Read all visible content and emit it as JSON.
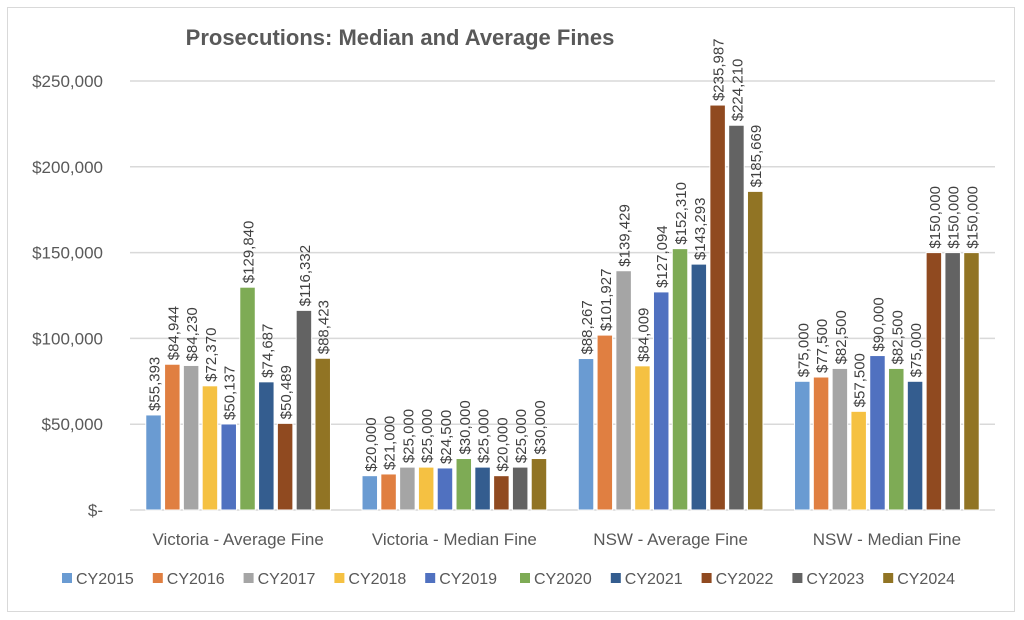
{
  "chart_data": {
    "type": "bar",
    "title": "Prosecutions: Median and Average Fines",
    "xlabel": "",
    "ylabel": "",
    "ylim": [
      0,
      250000
    ],
    "yticks": [
      0,
      50000,
      100000,
      150000,
      200000,
      250000
    ],
    "ytick_labels": [
      "$-",
      "$50,000",
      "$100,000",
      "$150,000",
      "$200,000",
      "$250,000"
    ],
    "grid": true,
    "legend_position": "bottom",
    "categories": [
      "Victoria - Average Fine",
      "Victoria - Median Fine",
      "NSW - Average Fine",
      "NSW - Median Fine"
    ],
    "series": [
      {
        "name": "CY2015",
        "color": "#6a9bd2",
        "values": [
          55393,
          20000,
          88267,
          75000
        ],
        "labels": [
          "$55,393",
          "$20,000",
          "$88,267",
          "$75,000"
        ]
      },
      {
        "name": "CY2016",
        "color": "#e07f41",
        "values": [
          84944,
          21000,
          101927,
          77500
        ],
        "labels": [
          "$84,944",
          "$21,000",
          "$101,927",
          "$77,500"
        ]
      },
      {
        "name": "CY2017",
        "color": "#a5a5a5",
        "values": [
          84230,
          25000,
          139429,
          82500
        ],
        "labels": [
          "$84,230",
          "$25,000",
          "$139,429",
          "$82,500"
        ]
      },
      {
        "name": "CY2018",
        "color": "#f5c142",
        "values": [
          72370,
          25000,
          84009,
          57500
        ],
        "labels": [
          "$72,370",
          "$25,000",
          "$84,009",
          "$57,500"
        ]
      },
      {
        "name": "CY2019",
        "color": "#5071c0",
        "values": [
          50137,
          24500,
          127094,
          90000
        ],
        "labels": [
          "$50,137",
          "$24,500",
          "$127,094",
          "$90,000"
        ]
      },
      {
        "name": "CY2020",
        "color": "#7eab55",
        "values": [
          129840,
          30000,
          152310,
          82500
        ],
        "labels": [
          "$129,840",
          "$30,000",
          "$152,310",
          "$82,500"
        ]
      },
      {
        "name": "CY2021",
        "color": "#345d8f",
        "values": [
          74687,
          25000,
          143293,
          75000
        ],
        "labels": [
          "$74,687",
          "$25,000",
          "$143,293",
          "$75,000"
        ]
      },
      {
        "name": "CY2022",
        "color": "#904a20",
        "values": [
          50489,
          20000,
          235987,
          150000
        ],
        "labels": [
          "$50,489",
          "$20,000",
          "$235,987",
          "$150,000"
        ]
      },
      {
        "name": "CY2023",
        "color": "#636363",
        "values": [
          116332,
          25000,
          224210,
          150000
        ],
        "labels": [
          "$116,332",
          "$25,000",
          "$224,210",
          "$150,000"
        ]
      },
      {
        "name": "CY2024",
        "color": "#917424",
        "values": [
          88423,
          30000,
          185669,
          150000
        ],
        "labels": [
          "$88,423",
          "$30,000",
          "$185,669",
          "$150,000"
        ]
      }
    ]
  }
}
